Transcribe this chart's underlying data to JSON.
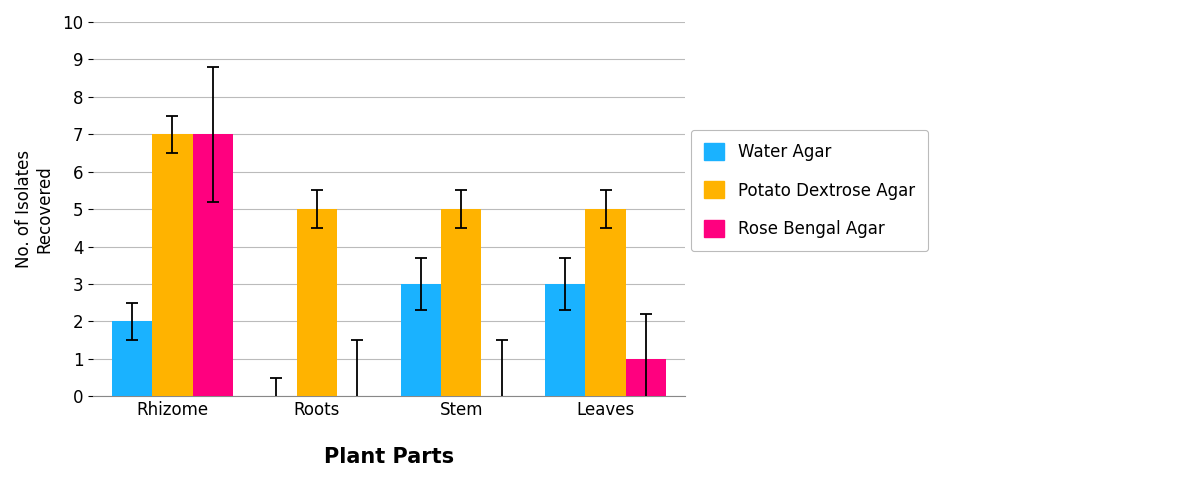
{
  "categories": [
    "Rhizome",
    "Roots",
    "Stem",
    "Leaves"
  ],
  "series": [
    {
      "name": "Water Agar",
      "color": "#1AB2FF",
      "values": [
        2,
        0,
        3,
        3
      ],
      "errors": [
        0.5,
        0.5,
        0.7,
        0.7
      ]
    },
    {
      "name": "Potato Dextrose Agar",
      "color": "#FFB300",
      "values": [
        7,
        5,
        5,
        5
      ],
      "errors": [
        0.5,
        0.5,
        0.5,
        0.5
      ]
    },
    {
      "name": "Rose Bengal Agar",
      "color": "#FF007F",
      "values": [
        7,
        0,
        0,
        1
      ],
      "errors": [
        1.8,
        1.5,
        1.5,
        1.2
      ]
    }
  ],
  "ylabel": "No. of Isolates\nRecovered",
  "xlabel": "Plant Parts",
  "ylim": [
    0,
    10
  ],
  "yticks": [
    0,
    1,
    2,
    3,
    4,
    5,
    6,
    7,
    8,
    9,
    10
  ],
  "bar_width": 0.28,
  "group_positions": [
    0.38,
    1.38,
    2.38,
    3.38
  ],
  "background_color": "#FFFFFF",
  "grid_color": "#BBBBBB",
  "ylabel_fontsize": 12,
  "xlabel_fontsize": 15,
  "tick_fontsize": 12,
  "legend_fontsize": 12
}
